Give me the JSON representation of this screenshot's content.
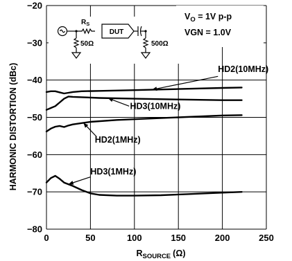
{
  "chart_data": {
    "type": "line",
    "xlabel": "R",
    "xlabel_sub": "SOURCE",
    "xlabel_unit": "(Ω)",
    "ylabel": "HARMONIC DISTORTION (dBc)",
    "xlim": [
      0,
      250
    ],
    "ylim": [
      -80,
      -20
    ],
    "x_ticks": [
      "0",
      "50",
      "100",
      "150",
      "200",
      "250"
    ],
    "y_ticks": [
      "−20",
      "−30",
      "−40",
      "−50",
      "−60",
      "−70",
      "−80"
    ],
    "grid": true,
    "conditions": {
      "line1_main": "V",
      "line1_sub": "O",
      "line1_rest": " = 1V p-p",
      "line2": "VGN = 1.0V"
    },
    "schematic": {
      "rs_main": "R",
      "rs_sub": "S",
      "dut": "DUT",
      "r_in": "50Ω",
      "r_load": "500Ω"
    },
    "series": [
      {
        "name": "HD2(10MHz)",
        "points": [
          [
            0,
            -43.2
          ],
          [
            5,
            -43
          ],
          [
            10,
            -43
          ],
          [
            15,
            -43.3
          ],
          [
            20,
            -43.6
          ],
          [
            25,
            -43.4
          ],
          [
            30,
            -43.2
          ],
          [
            40,
            -43
          ],
          [
            60,
            -42.9
          ],
          [
            100,
            -42.7
          ],
          [
            150,
            -42.4
          ],
          [
            200,
            -42.1
          ],
          [
            222,
            -42
          ]
        ]
      },
      {
        "name": "HD3(10MHz)",
        "points": [
          [
            0,
            -48
          ],
          [
            5,
            -47.5
          ],
          [
            10,
            -47
          ],
          [
            15,
            -46
          ],
          [
            20,
            -45
          ],
          [
            25,
            -44.4
          ],
          [
            30,
            -44.5
          ],
          [
            40,
            -44.6
          ],
          [
            60,
            -44.8
          ],
          [
            100,
            -45
          ],
          [
            150,
            -45.2
          ],
          [
            200,
            -45.4
          ],
          [
            222,
            -45.4
          ]
        ]
      },
      {
        "name": "HD2(1MHz)",
        "points": [
          [
            0,
            -53.8
          ],
          [
            5,
            -53
          ],
          [
            10,
            -52.5
          ],
          [
            15,
            -52.3
          ],
          [
            20,
            -52.6
          ],
          [
            25,
            -52.2
          ],
          [
            30,
            -51.9
          ],
          [
            50,
            -51.2
          ],
          [
            80,
            -50.7
          ],
          [
            100,
            -50.5
          ],
          [
            150,
            -50
          ],
          [
            200,
            -49.5
          ],
          [
            222,
            -49.4
          ]
        ]
      },
      {
        "name": "HD3(1MHz)",
        "points": [
          [
            0,
            -67.5
          ],
          [
            5,
            -66.3
          ],
          [
            10,
            -65.7
          ],
          [
            15,
            -66.5
          ],
          [
            20,
            -67.5
          ],
          [
            30,
            -68.4
          ],
          [
            40,
            -69.5
          ],
          [
            50,
            -70.4
          ],
          [
            60,
            -70.8
          ],
          [
            80,
            -71
          ],
          [
            100,
            -71
          ],
          [
            130,
            -70.9
          ],
          [
            160,
            -70.6
          ],
          [
            190,
            -70.3
          ],
          [
            222,
            -70
          ]
        ]
      }
    ],
    "annotations": [
      {
        "label": "HD2(10MHz)",
        "series": "HD2(10MHz)",
        "at_x": 120,
        "tx": 195,
        "ty": -37.8,
        "anchor": "start",
        "dx": 0,
        "from_x": 195,
        "from_y": -39
      },
      {
        "label": "HD3(10MHz)",
        "series": "HD3(10MHz)",
        "at_x": 70,
        "tx": 95,
        "ty": -47.8,
        "anchor": "start",
        "dx": 0,
        "from_x": 94,
        "from_y": -47
      },
      {
        "label": "HD2(1MHz)",
        "series": "HD2(1MHz)",
        "at_x": 42,
        "tx": 55,
        "ty": -56.8,
        "anchor": "start",
        "dx": 0,
        "from_x": 57,
        "from_y": -55.2
      },
      {
        "label": "HD3(1MHz)",
        "series": "HD3(1MHz)",
        "at_x": 25,
        "tx": 50,
        "ty": -65.3,
        "anchor": "start",
        "dx": 0,
        "from_x": 50,
        "from_y": -66
      }
    ]
  }
}
